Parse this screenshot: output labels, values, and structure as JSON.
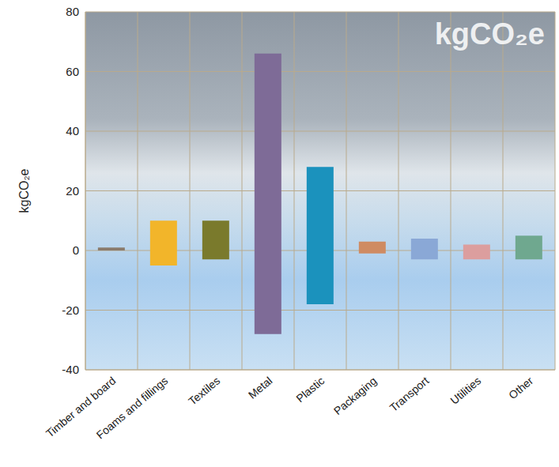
{
  "chart_data": {
    "type": "bar",
    "title": "kgCO₂e",
    "y_label": "kgCO₂e",
    "categories": [
      "Timber and board",
      "Foams and fillings",
      "Textiles",
      "Metal",
      "Plastic",
      "Packaging",
      "Transport",
      "Utilities",
      "Other"
    ],
    "values": [
      [
        0,
        1
      ],
      [
        -5,
        10
      ],
      [
        -3,
        10
      ],
      [
        -28,
        66
      ],
      [
        -18,
        28
      ],
      [
        -1,
        3
      ],
      [
        -3,
        4
      ],
      [
        -3,
        2
      ],
      [
        -3,
        5
      ]
    ],
    "colors": [
      "#8a7b6c",
      "#f2b52a",
      "#7a7a2c",
      "#7e6b97",
      "#1b92bd",
      "#cf8b62",
      "#8aa8d6",
      "#dc9e9e",
      "#6fa88f"
    ],
    "ylim": [
      -40,
      80
    ],
    "yticks": [
      -40,
      -20,
      0,
      20,
      40,
      60,
      80
    ],
    "grid": true
  }
}
